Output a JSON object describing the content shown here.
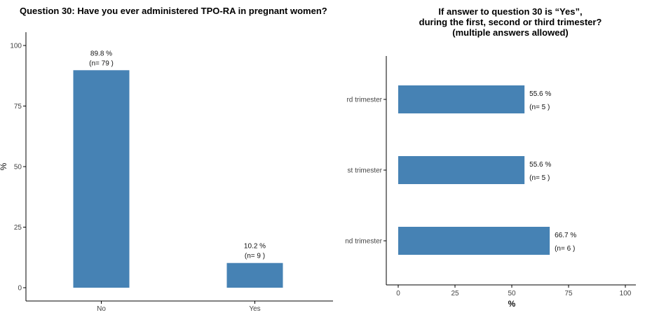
{
  "chart_data": [
    {
      "type": "bar",
      "orientation": "vertical",
      "title": "Question 30: Have you ever administered TPO-RA in pregnant women?",
      "ylabel": "%",
      "xlabel": "",
      "ylim": [
        0,
        100
      ],
      "yticks": [
        "0",
        "25",
        "50",
        "75",
        "100"
      ],
      "categories": [
        "No",
        "Yes"
      ],
      "values": [
        89.8,
        10.2
      ],
      "value_labels": [
        "89.8 %",
        "10.2 %"
      ],
      "n_labels": [
        "(n= 79 )",
        "(n= 9 )"
      ],
      "color": "#4682b4",
      "grid": false
    },
    {
      "type": "bar",
      "orientation": "horizontal",
      "title_lines": [
        "If answer to question 30 is “Yes”,",
        "during the first, second or third trimester?",
        "(multiple answers allowed)"
      ],
      "xlabel": "%",
      "ylabel": "",
      "xlim": [
        0,
        100
      ],
      "xticks": [
        "0",
        "25",
        "50",
        "75",
        "100"
      ],
      "categories": [
        "rd trimester",
        "st trimester",
        "nd trimester"
      ],
      "values": [
        55.6,
        55.6,
        66.7
      ],
      "value_labels": [
        "55.6 %",
        "55.6 %",
        "66.7 %"
      ],
      "n_labels": [
        "(n= 5 )",
        "(n= 5 )",
        "(n= 6 )"
      ],
      "color": "#4682b4",
      "grid": false
    }
  ]
}
